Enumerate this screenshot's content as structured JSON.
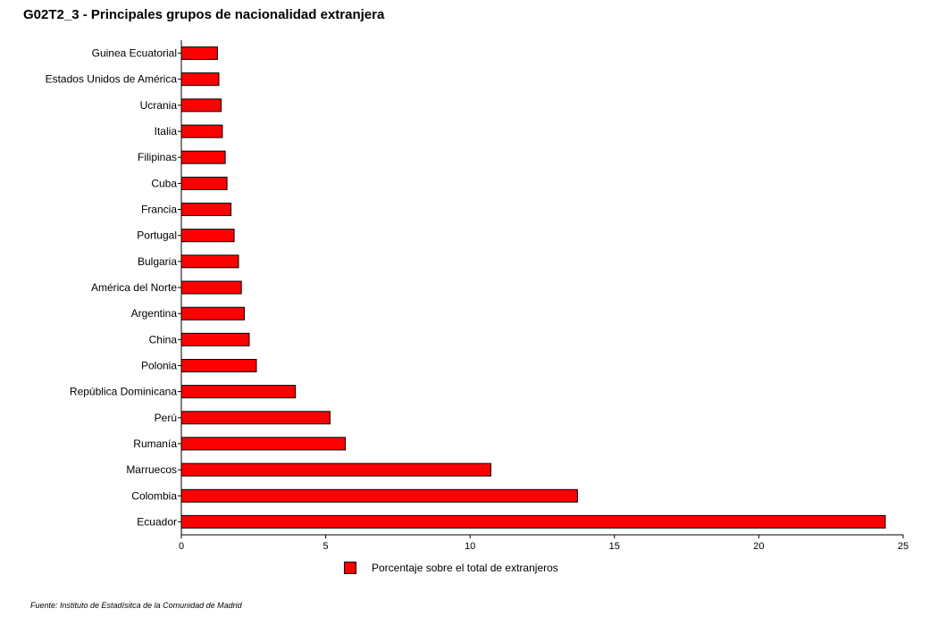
{
  "title": "G02T2_3 - Principales grupos de nacionalidad extranjera",
  "source": "Fuente: Instituto de Estadísitca de la Comunidad de Madrid",
  "colors": {
    "bar": "#ff0000",
    "stroke": "#000000"
  },
  "chart_data": {
    "type": "bar",
    "orientation": "horizontal",
    "categories": [
      "Guinea Ecuatorial",
      "Estados Unidos de América",
      "Ucrania",
      "Italia",
      "Filipinas",
      "Cuba",
      "Francia",
      "Portugal",
      "Bulgaria",
      "América del Norte",
      "Argentina",
      "China",
      "Polonia",
      "República Dominicana",
      "Perú",
      "Rumanía",
      "Marruecos",
      "Colombia",
      "Ecuador"
    ],
    "series": [
      {
        "name": "Porcentaje sobre el total de extranjeros",
        "values": [
          1.25,
          1.3,
          1.38,
          1.42,
          1.52,
          1.58,
          1.72,
          1.83,
          1.98,
          2.08,
          2.18,
          2.35,
          2.6,
          3.95,
          5.15,
          5.68,
          10.72,
          13.72,
          24.38
        ]
      }
    ],
    "xlim": [
      0,
      25
    ],
    "xticks": [
      0,
      5,
      10,
      15,
      20,
      25
    ],
    "legend": "bottom-center",
    "grid": false
  }
}
